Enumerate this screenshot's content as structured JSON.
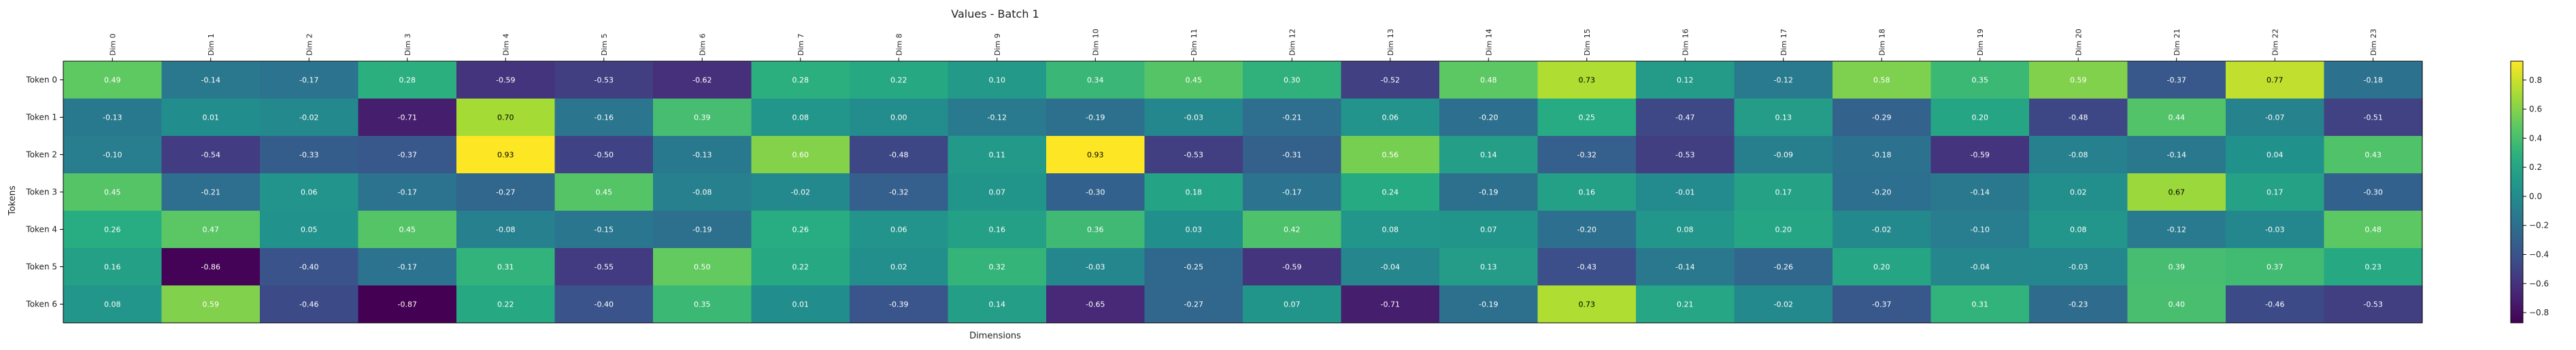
{
  "chart_data": {
    "type": "heatmap",
    "title": "Values - Batch 1",
    "xlabel": "Dimensions",
    "ylabel": "Tokens",
    "columns": [
      "Dim 0",
      "Dim 1",
      "Dim 2",
      "Dim 3",
      "Dim 4",
      "Dim 5",
      "Dim 6",
      "Dim 7",
      "Dim 8",
      "Dim 9",
      "Dim 10",
      "Dim 11",
      "Dim 12",
      "Dim 13",
      "Dim 14",
      "Dim 15",
      "Dim 16",
      "Dim 17",
      "Dim 18",
      "Dim 19",
      "Dim 20",
      "Dim 21",
      "Dim 22",
      "Dim 23"
    ],
    "rows": [
      "Token 0",
      "Token 1",
      "Token 2",
      "Token 3",
      "Token 4",
      "Token 5",
      "Token 6"
    ],
    "values": [
      [
        0.49,
        -0.14,
        -0.17,
        0.28,
        -0.59,
        -0.53,
        -0.62,
        0.28,
        0.22,
        0.1,
        0.34,
        0.45,
        0.3,
        -0.52,
        0.48,
        0.73,
        0.12,
        -0.12,
        0.58,
        0.35,
        0.59,
        -0.37,
        0.77,
        -0.18
      ],
      [
        -0.13,
        0.01,
        -0.02,
        -0.71,
        0.7,
        -0.16,
        0.39,
        0.08,
        0.0,
        -0.12,
        -0.19,
        -0.03,
        -0.21,
        0.06,
        -0.2,
        0.25,
        -0.47,
        0.13,
        -0.29,
        0.2,
        -0.48,
        0.44,
        -0.07,
        -0.51
      ],
      [
        -0.1,
        -0.54,
        -0.33,
        -0.37,
        0.93,
        -0.5,
        -0.13,
        0.6,
        -0.48,
        0.11,
        0.93,
        -0.53,
        -0.31,
        0.56,
        0.14,
        -0.32,
        -0.53,
        -0.09,
        -0.18,
        -0.59,
        -0.08,
        -0.14,
        0.04,
        0.43
      ],
      [
        0.45,
        -0.21,
        0.06,
        -0.17,
        -0.27,
        0.45,
        -0.08,
        -0.02,
        -0.32,
        0.07,
        -0.3,
        0.18,
        -0.17,
        0.24,
        -0.19,
        0.16,
        -0.01,
        0.17,
        -0.2,
        -0.14,
        0.02,
        0.67,
        0.17,
        -0.3
      ],
      [
        0.26,
        0.47,
        0.05,
        0.45,
        -0.08,
        -0.15,
        -0.19,
        0.26,
        0.06,
        0.16,
        0.36,
        0.03,
        0.42,
        0.08,
        0.07,
        -0.2,
        0.08,
        0.2,
        -0.02,
        -0.1,
        0.08,
        -0.12,
        -0.03,
        0.48
      ],
      [
        0.16,
        -0.86,
        -0.4,
        -0.17,
        0.31,
        -0.55,
        0.5,
        0.22,
        0.02,
        0.32,
        -0.03,
        -0.25,
        -0.59,
        -0.04,
        0.13,
        -0.43,
        -0.14,
        -0.26,
        0.2,
        -0.04,
        -0.03,
        0.39,
        0.37,
        0.23
      ],
      [
        0.08,
        0.59,
        -0.46,
        -0.87,
        0.22,
        -0.4,
        0.35,
        0.01,
        -0.39,
        0.14,
        -0.65,
        -0.27,
        0.07,
        -0.71,
        -0.19,
        0.73,
        0.21,
        -0.02,
        -0.37,
        0.31,
        -0.23,
        0.4,
        -0.46,
        -0.53
      ]
    ],
    "colorscale": "viridis",
    "vmin": -0.87,
    "vmax": 0.93,
    "colorbar_ticks": [
      -0.8,
      -0.6,
      -0.4,
      -0.2,
      0.0,
      0.2,
      0.4,
      0.6,
      0.8
    ],
    "colorbar_tick_labels": [
      "−0.8",
      "−0.6",
      "−0.4",
      "−0.2",
      "0.0",
      "0.2",
      "0.4",
      "0.6",
      "0.8"
    ],
    "grid": false
  }
}
